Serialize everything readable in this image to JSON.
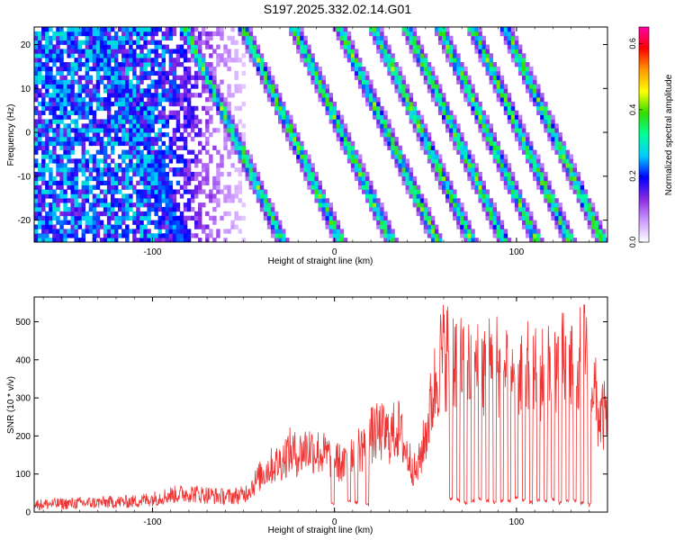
{
  "title": "S197.2025.332.02.14.G01",
  "chart_data": [
    {
      "type": "heatmap",
      "xlabel": "Height of straight line (km)",
      "ylabel": "Frequency (Hz)",
      "xlim": [
        -165,
        150
      ],
      "ylim": [
        -25,
        24
      ],
      "xticks": [
        -100,
        0,
        100
      ],
      "yticks": [
        -20,
        -10,
        0,
        10,
        20
      ],
      "colorbar": {
        "label": "Normalized spectral amplitude",
        "range": [
          0.0,
          0.65
        ],
        "ticks": [
          "0.0",
          "0.2",
          "0.4",
          "0.6"
        ],
        "colors": [
          "#ffffff",
          "#cc99ff",
          "#8a2be2",
          "#0000ff",
          "#00ccff",
          "#00ff99",
          "#33dd00",
          "#ffff00",
          "#ff9900",
          "#ff0000",
          "#ff00aa"
        ]
      },
      "stripes_x_at_f_minus25": [
        -30,
        2,
        30,
        55,
        74,
        92,
        110,
        128,
        146
      ],
      "stripe_slope_km_per_hz": -1.1
    },
    {
      "type": "line",
      "xlabel": "Height of straight line (km)",
      "ylabel": "SNR (10 * v/v)",
      "xlim": [
        -165,
        150
      ],
      "ylim": [
        0,
        565
      ],
      "xticks": [
        -100,
        0,
        100
      ],
      "yticks": [
        0,
        100,
        200,
        300,
        400,
        500
      ],
      "series": [
        {
          "name": "SNR",
          "color": "#ee3333",
          "x": [
            -165,
            -150,
            -130,
            -110,
            -100,
            -90,
            -80,
            -70,
            -60,
            -50,
            -45,
            -40,
            -35,
            -30,
            -25,
            -20,
            -15,
            -10,
            -5,
            0,
            5,
            10,
            15,
            20,
            25,
            30,
            35,
            40,
            45,
            50,
            55,
            58,
            62,
            66,
            70,
            80,
            90,
            100,
            110,
            120,
            130,
            140,
            145,
            150
          ],
          "values": [
            20,
            22,
            25,
            28,
            35,
            45,
            50,
            45,
            40,
            45,
            70,
            100,
            120,
            130,
            160,
            150,
            170,
            160,
            150,
            140,
            120,
            160,
            170,
            200,
            210,
            200,
            220,
            150,
            100,
            200,
            330,
            400,
            420,
            410,
            380,
            370,
            390,
            380,
            360,
            370,
            400,
            410,
            250,
            250
          ],
          "dropouts": {
            "x": [
              -1,
              8,
              12,
              18,
              64,
              68,
              72,
              76,
              80,
              84,
              88,
              92,
              96,
              100,
              104,
              108,
              112,
              116,
              120,
              124,
              128,
              132,
              136,
              140
            ],
            "values": [
              20,
              30,
              25,
              20,
              35,
              30,
              25,
              30,
              35,
              30,
              25,
              30,
              30,
              35,
              30,
              25,
              30,
              30,
              35,
              25,
              30,
              30,
              25,
              20
            ]
          }
        }
      ]
    }
  ]
}
